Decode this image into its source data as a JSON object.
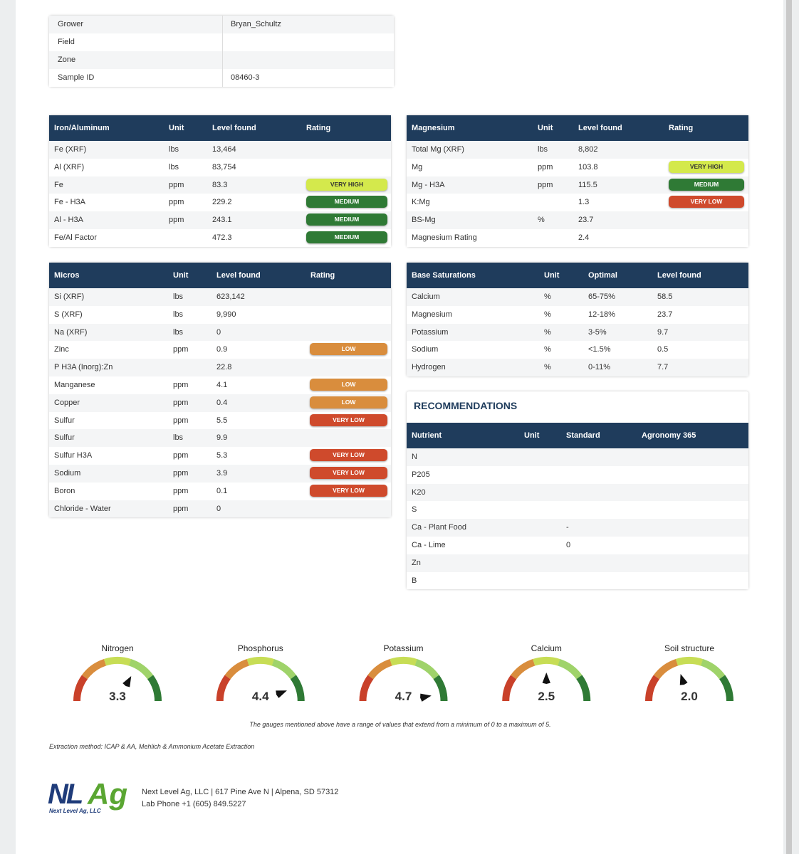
{
  "sample_info": {
    "rows": [
      [
        "Grower",
        "Bryan_Schultz"
      ],
      [
        "Field",
        null
      ],
      [
        "Zone",
        null
      ],
      [
        "Sample ID",
        "08460-3"
      ]
    ]
  },
  "tables": [
    {
      "columns": [
        "Iron/Aluminum",
        "Unit",
        "Level found",
        "Rating"
      ],
      "rows": [
        [
          "Fe (XRF)",
          "lbs",
          "13,464",
          null
        ],
        [
          "Al (XRF)",
          "lbs",
          "83,754",
          null
        ],
        [
          "Fe",
          "ppm",
          "83.3",
          {
            "text": "VERY HIGH",
            "color": "#d4e94c"
          }
        ],
        [
          "Fe - H3A",
          "ppm",
          "229.2",
          {
            "text": "MEDIUM",
            "color": "#2f7a35"
          }
        ],
        [
          "Al - H3A",
          "ppm",
          "243.1",
          {
            "text": "MEDIUM",
            "color": "#2f7a35"
          }
        ],
        [
          "Fe/Al Factor",
          null,
          "472.3",
          {
            "text": "MEDIUM",
            "color": "#2f7a35"
          }
        ]
      ]
    },
    {
      "columns": [
        "Magnesium",
        "Unit",
        "Level found",
        "Rating"
      ],
      "rows": [
        [
          "Total Mg (XRF)",
          "lbs",
          "8,802",
          null
        ],
        [
          "Mg",
          "ppm",
          "103.8",
          {
            "text": "VERY HIGH",
            "color": "#d4e94c"
          }
        ],
        [
          "Mg - H3A",
          "ppm",
          "115.5",
          {
            "text": "MEDIUM",
            "color": "#2f7a35"
          }
        ],
        [
          "K:Mg",
          null,
          "1.3",
          {
            "text": "VERY LOW",
            "color": "#cf4a2c"
          }
        ],
        [
          "BS-Mg",
          "%",
          "23.7",
          null
        ],
        [
          "Magnesium Rating",
          null,
          "2.4",
          null
        ]
      ]
    },
    {
      "columns": [
        "Micros",
        "Unit",
        "Level found",
        "Rating"
      ],
      "rows": [
        [
          "Si (XRF)",
          "lbs",
          "623,142",
          null
        ],
        [
          "S (XRF)",
          "lbs",
          "9,990",
          null
        ],
        [
          "Na (XRF)",
          "lbs",
          "0",
          null
        ],
        [
          "Zinc",
          "ppm",
          "0.9",
          {
            "text": "LOW",
            "color": "#d98d3d"
          }
        ],
        [
          "P H3A (Inorg):Zn",
          null,
          "22.8",
          null
        ],
        [
          "Manganese",
          "ppm",
          "4.1",
          {
            "text": "LOW",
            "color": "#d98d3d"
          }
        ],
        [
          "Copper",
          "ppm",
          "0.4",
          {
            "text": "LOW",
            "color": "#d98d3d"
          }
        ],
        [
          "Sulfur",
          "ppm",
          "5.5",
          {
            "text": "VERY LOW",
            "color": "#cf4a2c"
          }
        ],
        [
          "Sulfur",
          "lbs",
          "9.9",
          null
        ],
        [
          "Sulfur H3A",
          "ppm",
          "5.3",
          {
            "text": "VERY LOW",
            "color": "#cf4a2c"
          }
        ],
        [
          "Sodium",
          "ppm",
          "3.9",
          {
            "text": "VERY LOW",
            "color": "#cf4a2c"
          }
        ],
        [
          "Boron",
          "ppm",
          "0.1",
          {
            "text": "VERY LOW",
            "color": "#cf4a2c"
          }
        ],
        [
          "Chloride - Water",
          "ppm",
          "0",
          null
        ]
      ]
    },
    {
      "columns": [
        "Base Saturations",
        "Unit",
        "Optimal",
        "Level found"
      ],
      "rows": [
        [
          "Calcium",
          "%",
          "65-75%",
          "58.5"
        ],
        [
          "Magnesium",
          "%",
          "12-18%",
          "23.7"
        ],
        [
          "Potassium",
          "%",
          "3-5%",
          "9.7"
        ],
        [
          "Sodium",
          "%",
          "<1.5%",
          "0.5"
        ],
        [
          "Hydrogen",
          "%",
          "0-11%",
          "7.7"
        ]
      ]
    },
    {
      "title": "RECOMMENDATIONS",
      "columns": [
        "Nutrient",
        "Unit",
        "Standard",
        "Agronomy 365"
      ],
      "rows": [
        [
          "N"
        ],
        [
          "P205"
        ],
        [
          "K20"
        ],
        [
          "S"
        ],
        [
          "Ca - Plant Food",
          null,
          "-"
        ],
        [
          "Ca - Lime",
          null,
          "0"
        ],
        [
          "Zn"
        ],
        [
          "B"
        ]
      ]
    }
  ],
  "gauges": {
    "names": [
      "Nitrogen",
      "Phosphorus",
      "Potassium",
      "Calcium",
      "Soil structure"
    ],
    "values": [
      3.3,
      4.4,
      4.7,
      2.5,
      2
    ],
    "value_labels": [
      "3.3",
      "4.4",
      "4.7",
      "2.5",
      "2.0"
    ],
    "range": [
      0,
      5
    ],
    "note": "The gauges mentioned above have a range of values that extend from a minimum of 0 to a maximum of 5."
  },
  "extraction": "Extraction method: ICAP & AA, Mehlich & Ammonium Acetate Extraction",
  "footer": {
    "logo_left": "NL",
    "logo_right": "Ag",
    "logo_tagline": "Next Level Ag, LLC",
    "address": "Next Level Ag, LLC | 617 Pine Ave N | Alpena, SD 57312",
    "phone": "Lab Phone +1 (605) 849.5227"
  }
}
